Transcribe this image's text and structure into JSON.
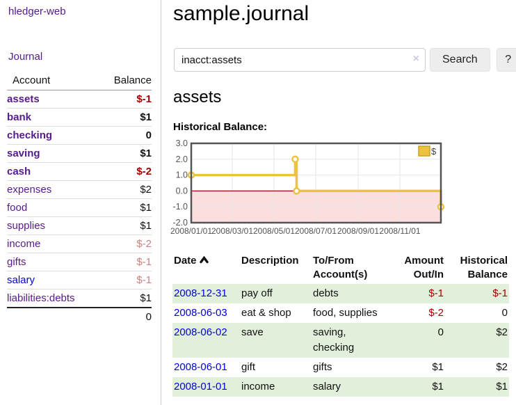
{
  "app": {
    "brand": "hledger-web"
  },
  "sidebar": {
    "nav_journal": "Journal",
    "accounts": {
      "headers": {
        "account": "Account",
        "balance": "Balance"
      },
      "rows": [
        {
          "name": "assets",
          "balance": "$-1"
        },
        {
          "name": "bank",
          "balance": "$1"
        },
        {
          "name": "checking",
          "balance": "0"
        },
        {
          "name": "saving",
          "balance": "$1"
        },
        {
          "name": "cash",
          "balance": "$-2"
        },
        {
          "name": "expenses",
          "balance": "$2"
        },
        {
          "name": "food",
          "balance": "$1"
        },
        {
          "name": "supplies",
          "balance": "$1"
        },
        {
          "name": "income",
          "balance": "$-2"
        },
        {
          "name": "gifts",
          "balance": "$-1"
        },
        {
          "name": "salary",
          "balance": "$-1"
        },
        {
          "name": "liabilities:debts",
          "balance": "$1"
        }
      ],
      "total": "0"
    }
  },
  "main": {
    "title": "sample.journal",
    "search": {
      "value": "inacct:assets",
      "clear_icon": "×",
      "button_label": "Search",
      "help_label": "?"
    },
    "account_heading": "assets",
    "chart_label": "Historical Balance:"
  },
  "chart_data": {
    "type": "line",
    "style": "steps",
    "title": "Historical Balance",
    "series": [
      {
        "name": "$",
        "color": "#edc240",
        "points": [
          [
            "2008-01-01",
            1.0
          ],
          [
            "2008-06-01",
            2.0
          ],
          [
            "2008-06-03",
            0.0
          ],
          [
            "2008-12-31",
            -1.0
          ]
        ]
      }
    ],
    "xlim": [
      "2008-01-01",
      "2008-12-31"
    ],
    "ylim": [
      -2.0,
      3.0
    ],
    "x_ticks": [
      "2008/01/01",
      "2008/03/01",
      "2008/05/01",
      "2008/07/01",
      "2008/09/01",
      "2008/11/01"
    ],
    "y_ticks": [
      "3.0",
      "2.0",
      "1.0",
      "0.0",
      "-1.0",
      "-2.0"
    ],
    "grid": true,
    "legend": {
      "label": "$",
      "position": "top-right"
    },
    "colors": {
      "line": "#edc240",
      "marker_fill": "#ffffff",
      "negative_region": "#fbdede",
      "zero_line": "#aa0000",
      "frame": "#545454",
      "gridline": "#e6e6e6",
      "tick_text": "#545454"
    }
  },
  "transactions": {
    "headers": [
      "Date",
      "Description",
      "To/From Account(s)",
      "Amount Out/In",
      "Historical Balance"
    ],
    "rows": [
      {
        "date": "2008-12-31",
        "description": "pay off",
        "accounts": "debts",
        "amount": "$-1",
        "balance": "$-1"
      },
      {
        "date": "2008-06-03",
        "description": "eat & shop",
        "accounts": "food, supplies",
        "amount": "$-2",
        "balance": "0"
      },
      {
        "date": "2008-06-02",
        "description": "save",
        "accounts": "saving, checking",
        "amount": "0",
        "balance": "$2"
      },
      {
        "date": "2008-06-01",
        "description": "gift",
        "accounts": "gifts",
        "amount": "$1",
        "balance": "$2"
      },
      {
        "date": "2008-01-01",
        "description": "income",
        "accounts": "salary",
        "amount": "$1",
        "balance": "$1"
      }
    ]
  }
}
